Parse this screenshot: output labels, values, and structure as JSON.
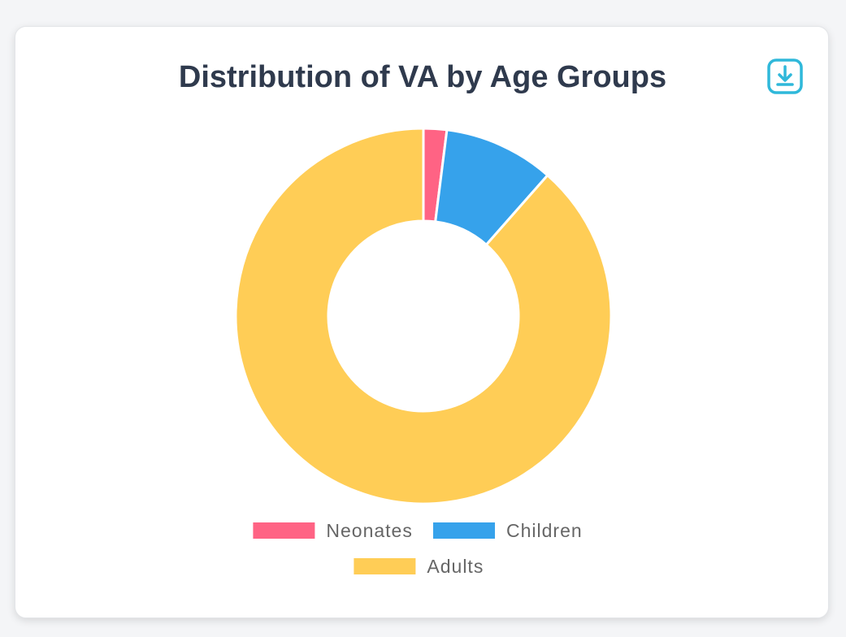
{
  "card": {
    "title": "Distribution of VA by Age Groups",
    "download_icon": "download-icon"
  },
  "chart_data": {
    "type": "doughnut",
    "title": "Distribution of VA by Age Groups",
    "categories": [
      "Neonates",
      "Children",
      "Adults"
    ],
    "values": [
      2,
      9.5,
      88.5
    ],
    "colors": [
      "#ff6384",
      "#36a2eb",
      "#ffcd56"
    ],
    "legend": "bottom"
  }
}
